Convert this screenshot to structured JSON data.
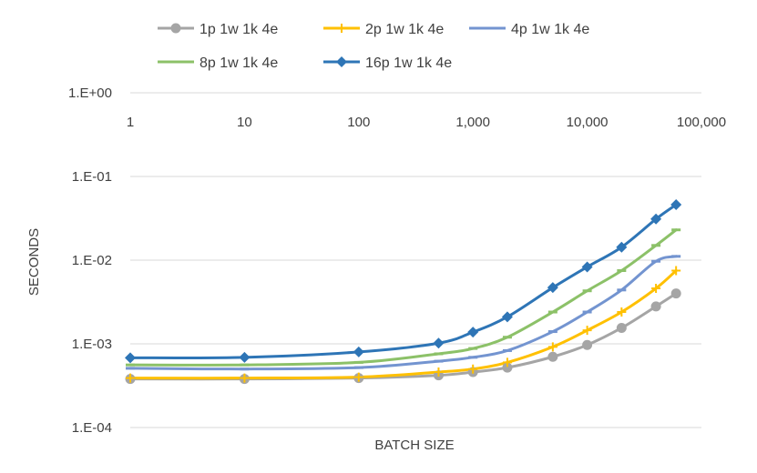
{
  "chart_data": {
    "type": "line",
    "title": "",
    "xlabel": "BATCH SIZE",
    "ylabel": "SECONDS",
    "xscale": "log",
    "yscale": "log",
    "xlim": [
      1,
      100000
    ],
    "ylim": [
      0.0001,
      1
    ],
    "x_ticks": [
      1,
      10,
      100,
      1000,
      10000,
      100000
    ],
    "x_tick_labels": [
      "1",
      "10",
      "100",
      "1,000",
      "10,000",
      "100,000"
    ],
    "y_ticks": [
      1,
      0.1,
      0.01,
      0.001,
      0.0001
    ],
    "y_tick_labels": [
      "1.E+00",
      "1.E-01",
      "1.E-02",
      "1.E-03",
      "1.E-04"
    ],
    "grid": "horizontal",
    "legend_position": "top",
    "x": [
      1,
      10,
      100,
      500,
      1000,
      2000,
      5000,
      10000,
      20000,
      40000,
      60000
    ],
    "series": [
      {
        "name": "1p 1w 1k 4e",
        "color": "#a5a5a5",
        "marker": "circle",
        "values": [
          0.00038,
          0.00038,
          0.00039,
          0.00042,
          0.00046,
          0.00052,
          0.0007,
          0.00097,
          0.00155,
          0.0028,
          0.004
        ]
      },
      {
        "name": "2p 1w 1k 4e",
        "color": "#ffc000",
        "marker": "plus",
        "values": [
          0.00039,
          0.00039,
          0.0004,
          0.00046,
          0.0005,
          0.0006,
          0.00092,
          0.00145,
          0.0024,
          0.0046,
          0.0075
        ]
      },
      {
        "name": "4p 1w 1k 4e",
        "color": "#7394d0",
        "marker": "dash",
        "values": [
          0.00051,
          0.0005,
          0.00052,
          0.00062,
          0.00069,
          0.00083,
          0.0014,
          0.0024,
          0.0044,
          0.0097,
          0.0111
        ]
      },
      {
        "name": "8p 1w 1k 4e",
        "color": "#8cc168",
        "marker": "dash",
        "values": [
          0.00056,
          0.00056,
          0.0006,
          0.00076,
          0.00088,
          0.0012,
          0.0024,
          0.0043,
          0.0075,
          0.015,
          0.023
        ]
      },
      {
        "name": "16p 1w 1k 4e",
        "color": "#2e75b6",
        "marker": "diamond",
        "values": [
          0.00068,
          0.00069,
          0.0008,
          0.00102,
          0.00138,
          0.0021,
          0.0047,
          0.0083,
          0.0143,
          0.031,
          0.046
        ]
      }
    ]
  }
}
